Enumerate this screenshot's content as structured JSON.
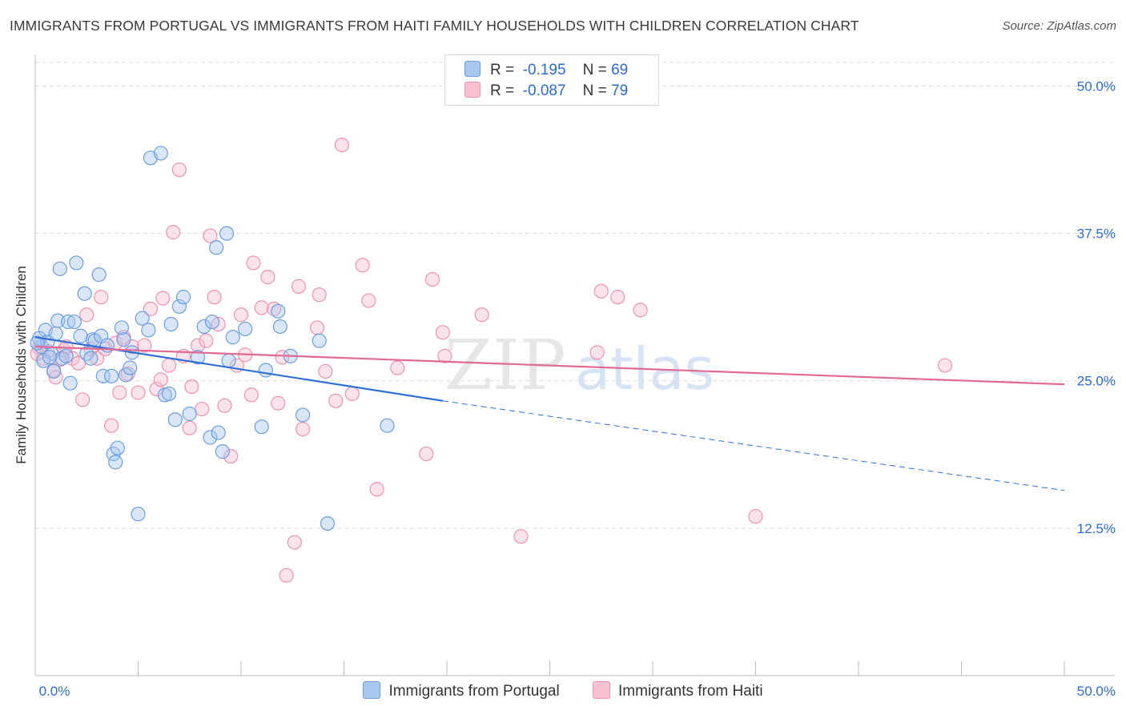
{
  "header": {
    "title": "IMMIGRANTS FROM PORTUGAL VS IMMIGRANTS FROM HAITI FAMILY HOUSEHOLDS WITH CHILDREN CORRELATION CHART",
    "source": "Source: ZipAtlas.com"
  },
  "legend": {
    "r_label": "R =",
    "n_label": "N =",
    "rows": [
      {
        "r": "-0.195",
        "n": "69"
      },
      {
        "r": "-0.087",
        "n": "79"
      }
    ]
  },
  "watermark": {
    "zip": "ZIP",
    "atlas": "atlas"
  },
  "colors": {
    "portugal_fill": "#a9c8f0",
    "portugal_stroke": "#6d9ee0",
    "portugal_line": "#2f6fd6",
    "haiti_fill": "#f7c1d2",
    "haiti_stroke": "#ec93b0",
    "haiti_line": "#e06a93",
    "tick_label": "#2d6bd0"
  },
  "chart_data": {
    "type": "scatter",
    "title": "IMMIGRANTS FROM PORTUGAL VS IMMIGRANTS FROM HAITI FAMILY HOUSEHOLDS WITH CHILDREN CORRELATION CHART",
    "xlabel": "",
    "ylabel": "Family Households with Children",
    "xlim": [
      0,
      50
    ],
    "ylim": [
      0,
      52
    ],
    "x_tick_labels": [
      "0.0%",
      "50.0%"
    ],
    "y_ticks": [
      12.5,
      25.0,
      37.5,
      50.0
    ],
    "y_tick_labels": [
      "12.5%",
      "25.0%",
      "37.5%",
      "50.0%"
    ],
    "grid": true,
    "legend_position": "top-center",
    "series": [
      {
        "name": "Immigrants from Portugal",
        "r": -0.195,
        "n": 69,
        "trend": {
          "x0": 0.0,
          "y0": 28.7,
          "x1": 19.8,
          "y1": 23.3,
          "x_end": 50.0,
          "y_end": 15.7
        },
        "points": [
          [
            0.3,
            27.9
          ],
          [
            0.5,
            29.3
          ],
          [
            0.2,
            28.6
          ],
          [
            0.8,
            27.3
          ],
          [
            0.4,
            26.7
          ],
          [
            0.6,
            28.3
          ],
          [
            1.0,
            29.0
          ],
          [
            1.1,
            30.1
          ],
          [
            0.9,
            25.8
          ],
          [
            1.3,
            26.9
          ],
          [
            1.2,
            34.5
          ],
          [
            1.5,
            27.1
          ],
          [
            1.6,
            30.0
          ],
          [
            1.7,
            24.8
          ],
          [
            1.9,
            30.0
          ],
          [
            2.0,
            35.0
          ],
          [
            2.2,
            28.8
          ],
          [
            2.4,
            32.4
          ],
          [
            2.5,
            27.3
          ],
          [
            2.8,
            28.5
          ],
          [
            2.7,
            26.9
          ],
          [
            2.9,
            28.4
          ],
          [
            3.1,
            34.0
          ],
          [
            3.2,
            28.8
          ],
          [
            3.3,
            25.4
          ],
          [
            3.5,
            28.0
          ],
          [
            3.7,
            25.4
          ],
          [
            3.8,
            18.8
          ],
          [
            3.9,
            18.1
          ],
          [
            4.0,
            19.3
          ],
          [
            4.2,
            29.5
          ],
          [
            4.3,
            28.5
          ],
          [
            4.4,
            25.5
          ],
          [
            4.6,
            26.1
          ],
          [
            4.7,
            27.4
          ],
          [
            5.0,
            13.7
          ],
          [
            5.2,
            30.3
          ],
          [
            5.5,
            29.3
          ],
          [
            5.6,
            43.9
          ],
          [
            6.1,
            44.3
          ],
          [
            6.3,
            23.8
          ],
          [
            6.5,
            23.9
          ],
          [
            6.6,
            29.8
          ],
          [
            6.8,
            21.7
          ],
          [
            7.0,
            31.3
          ],
          [
            7.2,
            32.1
          ],
          [
            7.5,
            22.2
          ],
          [
            7.9,
            27.0
          ],
          [
            8.2,
            29.6
          ],
          [
            8.5,
            20.2
          ],
          [
            8.6,
            30.0
          ],
          [
            8.8,
            36.3
          ],
          [
            8.9,
            20.6
          ],
          [
            9.1,
            19.0
          ],
          [
            9.3,
            37.5
          ],
          [
            9.4,
            26.7
          ],
          [
            9.6,
            28.7
          ],
          [
            10.2,
            29.4
          ],
          [
            11.0,
            21.1
          ],
          [
            11.2,
            25.9
          ],
          [
            11.8,
            30.9
          ],
          [
            11.9,
            29.6
          ],
          [
            12.4,
            27.1
          ],
          [
            13.0,
            22.1
          ],
          [
            13.8,
            28.4
          ],
          [
            14.2,
            12.9
          ],
          [
            17.1,
            21.2
          ],
          [
            0.1,
            28.2
          ],
          [
            0.7,
            27.0
          ]
        ]
      },
      {
        "name": "Immigrants from Haiti",
        "r": -0.087,
        "n": 79,
        "trend": {
          "x0": 0.0,
          "y0": 27.9,
          "x1": 50.0,
          "y1": 24.7
        },
        "points": [
          [
            0.2,
            27.8
          ],
          [
            0.4,
            26.9
          ],
          [
            0.6,
            27.5
          ],
          [
            0.9,
            25.9
          ],
          [
            1.0,
            25.3
          ],
          [
            1.2,
            26.8
          ],
          [
            1.4,
            27.6
          ],
          [
            1.5,
            27.9
          ],
          [
            1.8,
            26.9
          ],
          [
            2.1,
            26.5
          ],
          [
            2.3,
            23.4
          ],
          [
            2.5,
            30.6
          ],
          [
            2.7,
            27.7
          ],
          [
            3.0,
            26.9
          ],
          [
            3.2,
            32.1
          ],
          [
            3.4,
            27.7
          ],
          [
            3.7,
            21.2
          ],
          [
            3.9,
            28.2
          ],
          [
            4.1,
            24.0
          ],
          [
            4.3,
            28.7
          ],
          [
            4.5,
            25.6
          ],
          [
            4.7,
            27.9
          ],
          [
            5.0,
            24.0
          ],
          [
            5.3,
            28.0
          ],
          [
            5.6,
            31.1
          ],
          [
            5.9,
            24.3
          ],
          [
            6.1,
            25.1
          ],
          [
            6.2,
            32.0
          ],
          [
            6.5,
            26.3
          ],
          [
            6.7,
            37.6
          ],
          [
            7.0,
            42.9
          ],
          [
            7.2,
            27.1
          ],
          [
            7.5,
            21.0
          ],
          [
            7.6,
            24.5
          ],
          [
            7.9,
            28.0
          ],
          [
            8.1,
            22.6
          ],
          [
            8.3,
            28.4
          ],
          [
            8.5,
            37.3
          ],
          [
            8.7,
            32.1
          ],
          [
            8.9,
            29.8
          ],
          [
            9.2,
            22.9
          ],
          [
            9.5,
            18.6
          ],
          [
            9.8,
            26.3
          ],
          [
            10.0,
            30.6
          ],
          [
            10.2,
            27.2
          ],
          [
            10.5,
            23.8
          ],
          [
            10.6,
            35.0
          ],
          [
            11.0,
            31.2
          ],
          [
            11.3,
            33.8
          ],
          [
            11.6,
            31.1
          ],
          [
            11.8,
            23.1
          ],
          [
            12.0,
            27.0
          ],
          [
            12.2,
            8.5
          ],
          [
            12.6,
            11.3
          ],
          [
            12.8,
            33.0
          ],
          [
            13.0,
            20.9
          ],
          [
            13.7,
            29.5
          ],
          [
            13.8,
            32.3
          ],
          [
            14.1,
            25.8
          ],
          [
            14.6,
            23.3
          ],
          [
            14.9,
            45.0
          ],
          [
            15.4,
            23.9
          ],
          [
            15.9,
            34.8
          ],
          [
            16.2,
            31.8
          ],
          [
            16.6,
            15.8
          ],
          [
            17.6,
            26.1
          ],
          [
            19.0,
            18.8
          ],
          [
            19.3,
            33.6
          ],
          [
            19.8,
            29.1
          ],
          [
            19.9,
            27.1
          ],
          [
            21.7,
            30.6
          ],
          [
            23.6,
            11.8
          ],
          [
            27.3,
            27.4
          ],
          [
            27.5,
            32.6
          ],
          [
            28.3,
            32.1
          ],
          [
            29.4,
            31.0
          ],
          [
            35.0,
            13.5
          ],
          [
            44.2,
            26.3
          ],
          [
            0.1,
            27.3
          ]
        ]
      }
    ]
  },
  "bottom_legend": {
    "items": [
      "Immigrants from Portugal",
      "Immigrants from Haiti"
    ]
  }
}
